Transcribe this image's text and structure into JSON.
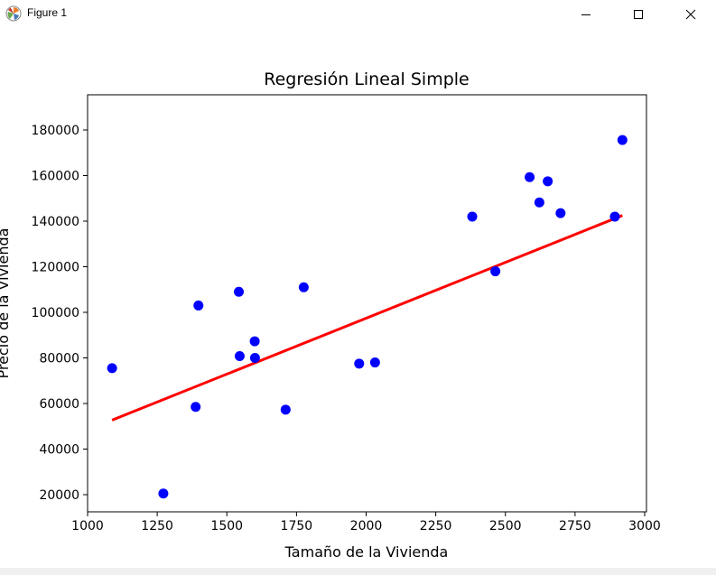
{
  "window": {
    "title": "Figure 1",
    "icons": {
      "app": "matplotlib-logo-icon",
      "minimize": "minimize-icon",
      "maximize": "maximize-icon",
      "close": "close-icon"
    }
  },
  "chart_data": {
    "type": "scatter",
    "title": "Regresión Lineal Simple",
    "xlabel": "Tamaño de la Vivienda",
    "ylabel": "Precio de la Vivienda",
    "xlim": [
      1000,
      3000
    ],
    "ylim": [
      20000,
      180000
    ],
    "x_ticks": [
      1000,
      1250,
      1500,
      1750,
      2000,
      2250,
      2500,
      2750,
      3000
    ],
    "y_ticks": [
      20000,
      40000,
      60000,
      80000,
      100000,
      120000,
      140000,
      160000,
      180000
    ],
    "grid": false,
    "legend": "none",
    "series": [
      {
        "type": "scatter",
        "color": "#0000ff",
        "points": [
          {
            "x": 1088,
            "y": 75500
          },
          {
            "x": 1272,
            "y": 20500
          },
          {
            "x": 1388,
            "y": 58500
          },
          {
            "x": 1398,
            "y": 103000
          },
          {
            "x": 1543,
            "y": 109000
          },
          {
            "x": 1546,
            "y": 80800
          },
          {
            "x": 1600,
            "y": 87300
          },
          {
            "x": 1601,
            "y": 80000
          },
          {
            "x": 1711,
            "y": 57300
          },
          {
            "x": 1776,
            "y": 111000
          },
          {
            "x": 1975,
            "y": 77500
          },
          {
            "x": 2032,
            "y": 78000
          },
          {
            "x": 2381,
            "y": 142000
          },
          {
            "x": 2464,
            "y": 118000
          },
          {
            "x": 2587,
            "y": 159300
          },
          {
            "x": 2622,
            "y": 148200
          },
          {
            "x": 2652,
            "y": 157500
          },
          {
            "x": 2698,
            "y": 143500
          },
          {
            "x": 2893,
            "y": 142000
          },
          {
            "x": 2920,
            "y": 175600
          }
        ]
      },
      {
        "type": "line",
        "color": "#ff0000",
        "points": [
          {
            "x": 1088,
            "y": 52700
          },
          {
            "x": 2920,
            "y": 142500
          }
        ]
      }
    ]
  }
}
